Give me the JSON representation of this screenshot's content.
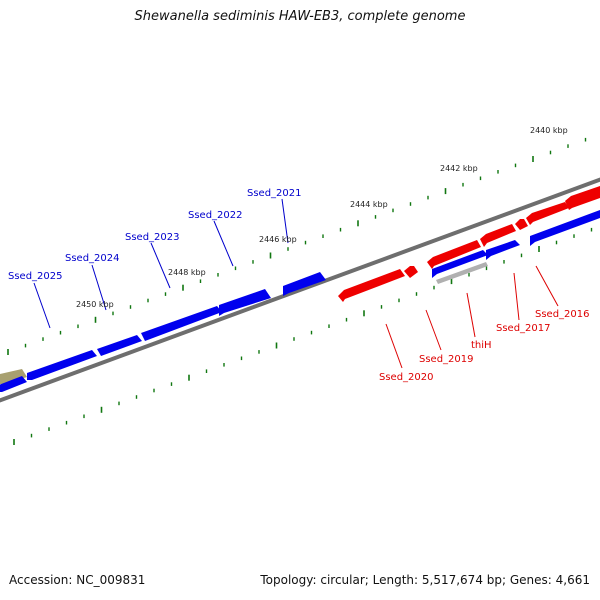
{
  "title": "Shewanella sediminis HAW-EB3, complete genome",
  "footer": {
    "accession": "Accession: NC_009831",
    "summary": "Topology: circular; Length: 5,517,674 bp; Genes: 4,661"
  },
  "colors": {
    "forward_gene": "#0000ee",
    "reverse_gene": "#ee0000",
    "backbone": "#7a7a7a",
    "ticks": "#117711",
    "other_feature": "#a8a070",
    "pseudo_gene": "#b0b0b0"
  },
  "kbp_labels": [
    "2440 kbp",
    "2442 kbp",
    "2444 kbp",
    "2446 kbp",
    "2448 kbp",
    "2450 kbp"
  ],
  "forward_gene_labels": [
    "Ssed_2021",
    "Ssed_2022",
    "Ssed_2023",
    "Ssed_2024",
    "Ssed_2025"
  ],
  "reverse_gene_labels": [
    "Ssed_2016",
    "Ssed_2017",
    "thiH",
    "Ssed_2019",
    "Ssed_2020"
  ]
}
